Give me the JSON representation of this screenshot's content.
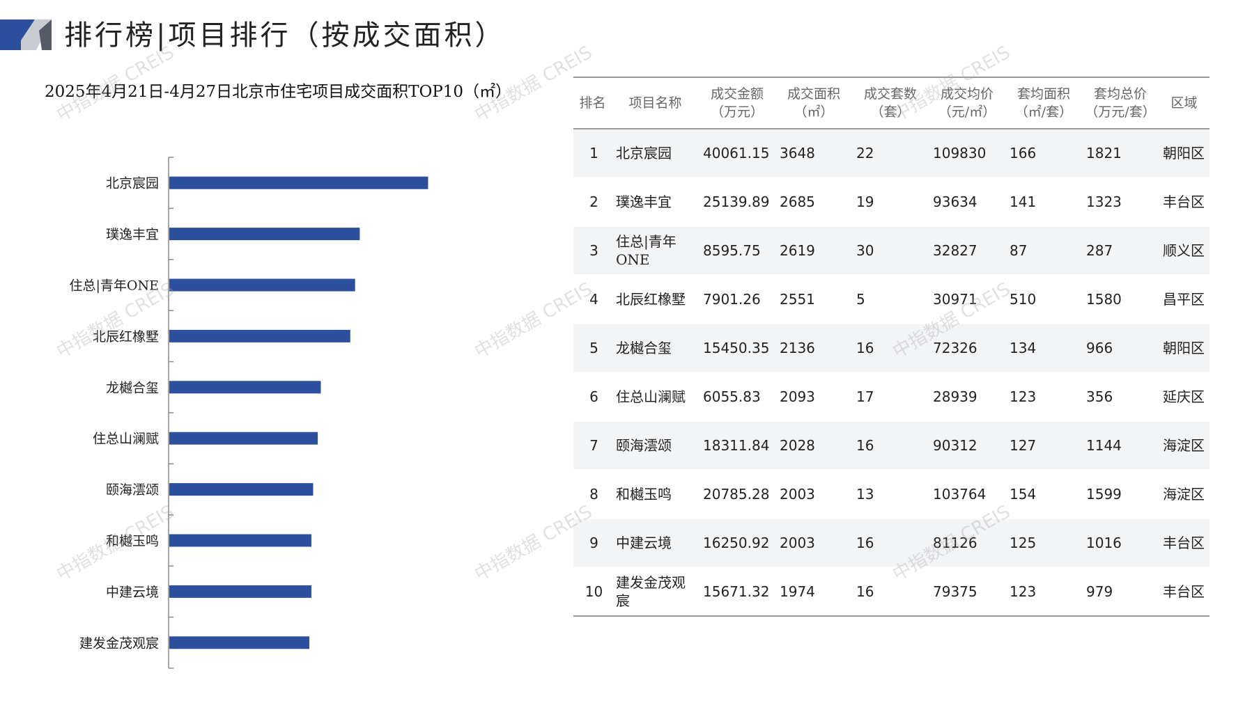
{
  "header": {
    "title": "排行榜|项目排行（按成交面积）"
  },
  "chart_data": {
    "type": "bar",
    "orientation": "horizontal",
    "title": "2025年4月21日-4月27日北京市住宅项目成交面积TOP10（㎡）",
    "categories": [
      "北京宸园",
      "璞逸丰宜",
      "住总|青年ONE",
      "北辰红橡墅",
      "龙樾合玺",
      "住总山澜赋",
      "颐海澐颂",
      "和樾玉鸣",
      "中建云境",
      "建发金茂观宸"
    ],
    "values": [
      3648,
      2685,
      2619,
      2551,
      2136,
      2093,
      2028,
      2003,
      2003,
      1974
    ],
    "bar_color": "#2c4f9e",
    "xlabel": "",
    "ylabel": "",
    "xlim": [
      0,
      5500
    ],
    "grid": false,
    "legend": "none"
  },
  "table": {
    "columns": [
      {
        "line1": "排名",
        "line2": ""
      },
      {
        "line1": "项目名称",
        "line2": ""
      },
      {
        "line1": "成交金额",
        "line2": "（万元）"
      },
      {
        "line1": "成交面积",
        "line2": "（㎡）"
      },
      {
        "line1": "成交套数",
        "line2": "（套）"
      },
      {
        "line1": "成交均价",
        "line2": "（元/㎡）"
      },
      {
        "line1": "套均面积",
        "line2": "（㎡/套）"
      },
      {
        "line1": "套均总价",
        "line2": "（万元/套）"
      },
      {
        "line1": "区域",
        "line2": ""
      }
    ],
    "rows": [
      {
        "rank": "1",
        "name": "北京宸园",
        "amount": "40061.15",
        "area": "3648",
        "units": "22",
        "avg_price": "109830",
        "avg_area": "166",
        "avg_total": "1821",
        "district": "朝阳区"
      },
      {
        "rank": "2",
        "name": "璞逸丰宜",
        "amount": "25139.89",
        "area": "2685",
        "units": "19",
        "avg_price": "93634",
        "avg_area": "141",
        "avg_total": "1323",
        "district": "丰台区"
      },
      {
        "rank": "3",
        "name": "住总|青年ONE",
        "amount": "8595.75",
        "area": "2619",
        "units": "30",
        "avg_price": "32827",
        "avg_area": "87",
        "avg_total": "287",
        "district": "顺义区"
      },
      {
        "rank": "4",
        "name": "北辰红橡墅",
        "amount": "7901.26",
        "area": "2551",
        "units": "5",
        "avg_price": "30971",
        "avg_area": "510",
        "avg_total": "1580",
        "district": "昌平区"
      },
      {
        "rank": "5",
        "name": "龙樾合玺",
        "amount": "15450.35",
        "area": "2136",
        "units": "16",
        "avg_price": "72326",
        "avg_area": "134",
        "avg_total": "966",
        "district": "朝阳区"
      },
      {
        "rank": "6",
        "name": "住总山澜赋",
        "amount": "6055.83",
        "area": "2093",
        "units": "17",
        "avg_price": "28939",
        "avg_area": "123",
        "avg_total": "356",
        "district": "延庆区"
      },
      {
        "rank": "7",
        "name": "颐海澐颂",
        "amount": "18311.84",
        "area": "2028",
        "units": "16",
        "avg_price": "90312",
        "avg_area": "127",
        "avg_total": "1144",
        "district": "海淀区"
      },
      {
        "rank": "8",
        "name": "和樾玉鸣",
        "amount": "20785.28",
        "area": "2003",
        "units": "13",
        "avg_price": "103764",
        "avg_area": "154",
        "avg_total": "1599",
        "district": "海淀区"
      },
      {
        "rank": "9",
        "name": "中建云境",
        "amount": "16250.92",
        "area": "2003",
        "units": "16",
        "avg_price": "81126",
        "avg_area": "125",
        "avg_total": "1016",
        "district": "丰台区"
      },
      {
        "rank": "10",
        "name": "建发金茂观宸",
        "amount": "15671.32",
        "area": "1974",
        "units": "16",
        "avg_price": "79375",
        "avg_area": "123",
        "avg_total": "979",
        "district": "丰台区"
      }
    ]
  },
  "watermark": {
    "text": "中指数据 CREIS"
  },
  "colors": {
    "accent": "#2c4f9e",
    "logo_dark": "#2c4f9e",
    "logo_gray": "#c9ccd3"
  }
}
